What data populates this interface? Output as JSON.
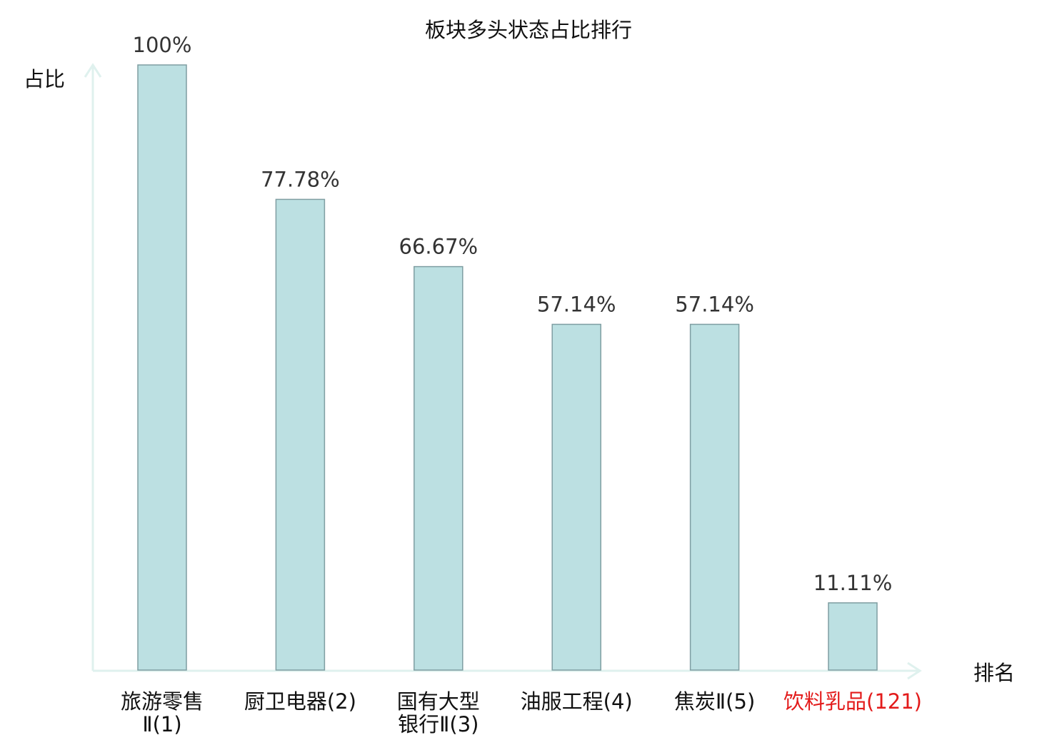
{
  "chart_data": {
    "type": "bar",
    "title": "板块多头状态占比排行",
    "ylabel": "占比",
    "xlabel": "排名",
    "ylim": [
      0,
      100
    ],
    "grid": false,
    "categories": [
      {
        "lines": [
          "旅游零售",
          "Ⅱ(1)"
        ],
        "highlight": false
      },
      {
        "lines": [
          "厨卫电器(2)"
        ],
        "highlight": false
      },
      {
        "lines": [
          "国有大型",
          "银行Ⅱ(3)"
        ],
        "highlight": false
      },
      {
        "lines": [
          "油服工程(4)"
        ],
        "highlight": false
      },
      {
        "lines": [
          "焦炭Ⅱ(5)"
        ],
        "highlight": false
      },
      {
        "lines": [
          "饮料乳品(121)"
        ],
        "highlight": true
      }
    ],
    "values": [
      100,
      77.78,
      66.67,
      57.14,
      57.14,
      11.11
    ],
    "value_labels": [
      "100%",
      "77.78%",
      "66.67%",
      "57.14%",
      "57.14%",
      "11.11%"
    ],
    "colors": {
      "bar_fill": "#bce0e2",
      "bar_stroke": "#7f9ea2",
      "axis": "#dff1ee",
      "text": "#333333",
      "title_text": "#111111",
      "highlight_text": "#e31b1b"
    }
  }
}
